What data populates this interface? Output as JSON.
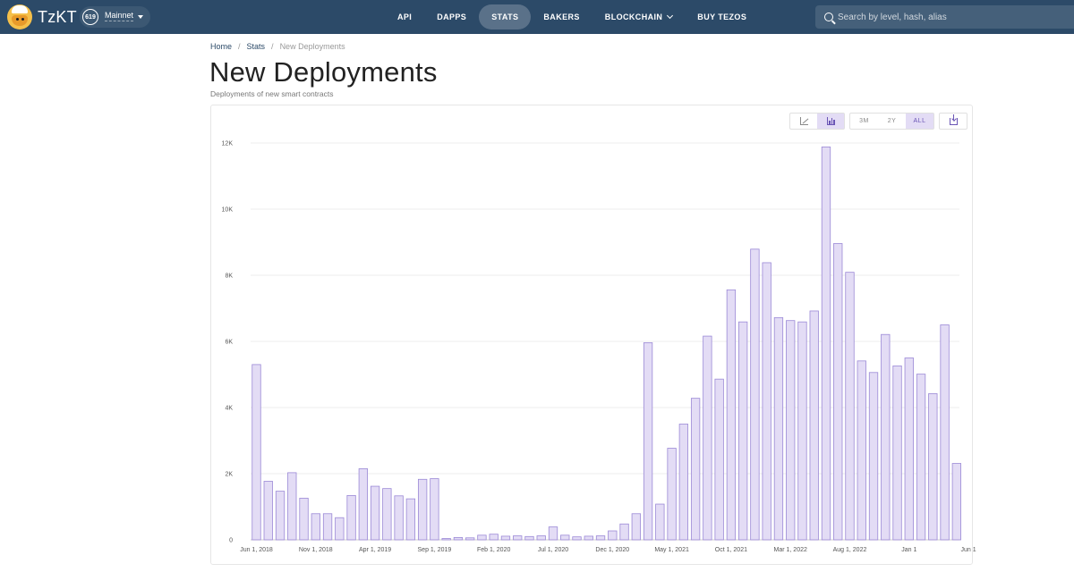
{
  "brand": {
    "name": "TzKT"
  },
  "network": {
    "cycle": "619",
    "label": "Mainnet"
  },
  "nav": [
    {
      "label": "API",
      "active": false
    },
    {
      "label": "DAPPS",
      "active": false
    },
    {
      "label": "STATS",
      "active": true
    },
    {
      "label": "BAKERS",
      "active": false
    },
    {
      "label": "BLOCKCHAIN",
      "active": false,
      "dropdown": true
    },
    {
      "label": "BUY TEZOS",
      "active": false
    }
  ],
  "search": {
    "placeholder": "Search by level, hash, alias"
  },
  "breadcrumb": {
    "home": "Home",
    "stats": "Stats",
    "current": "New Deployments"
  },
  "page": {
    "title": "New Deployments",
    "subtitle": "Deployments of new smart contracts"
  },
  "toolbar": {
    "chart_types": [
      {
        "icon": "line-chart-icon",
        "active": false
      },
      {
        "icon": "bar-chart-icon",
        "active": true
      }
    ],
    "ranges": [
      {
        "label": "3M",
        "active": false
      },
      {
        "label": "2Y",
        "active": false
      },
      {
        "label": "ALL",
        "active": true
      }
    ],
    "download_icon": "download-icon"
  },
  "colors": {
    "bar_fill": "#e3dcf5",
    "bar_stroke": "#9b89d6",
    "header_bg": "#2c4a68",
    "accent": "#6a55b5"
  },
  "chart_data": {
    "type": "bar",
    "title": "",
    "xlabel": "",
    "ylabel": "",
    "ylim": [
      0,
      12000
    ],
    "yticks": [
      0,
      2000,
      4000,
      6000,
      8000,
      10000,
      12000
    ],
    "ytick_labels": [
      "0",
      "2K",
      "4K",
      "6K",
      "8K",
      "10K",
      "12K"
    ],
    "grid": true,
    "xtick_labels": [
      {
        "index": 0,
        "label": "Jun 1, 2018"
      },
      {
        "index": 5,
        "label": "Nov 1, 2018"
      },
      {
        "index": 10,
        "label": "Apr 1, 2019"
      },
      {
        "index": 15,
        "label": "Sep 1, 2019"
      },
      {
        "index": 20,
        "label": "Feb 1, 2020"
      },
      {
        "index": 25,
        "label": "Jul 1, 2020"
      },
      {
        "index": 30,
        "label": "Dec 1, 2020"
      },
      {
        "index": 35,
        "label": "May 1, 2021"
      },
      {
        "index": 40,
        "label": "Oct 1, 2021"
      },
      {
        "index": 45,
        "label": "Mar 1, 2022"
      },
      {
        "index": 50,
        "label": "Aug 1, 2022"
      },
      {
        "index": 55,
        "label": "Jan 1"
      },
      {
        "index": 60,
        "label": "Jun 1"
      }
    ],
    "values": [
      5300,
      1770,
      1470,
      2030,
      1260,
      790,
      790,
      670,
      1340,
      2150,
      1620,
      1550,
      1330,
      1240,
      1830,
      1850,
      40,
      70,
      60,
      140,
      170,
      110,
      120,
      100,
      120,
      390,
      140,
      90,
      110,
      120,
      270,
      480,
      790,
      5960,
      1080,
      2770,
      3500,
      4280,
      6160,
      4860,
      7560,
      6590,
      8790,
      8380,
      6720,
      6630,
      6590,
      6920,
      11880,
      8960,
      8090,
      5410,
      5060,
      6210,
      5260,
      5500,
      5010,
      4420,
      6500,
      2310
    ]
  }
}
